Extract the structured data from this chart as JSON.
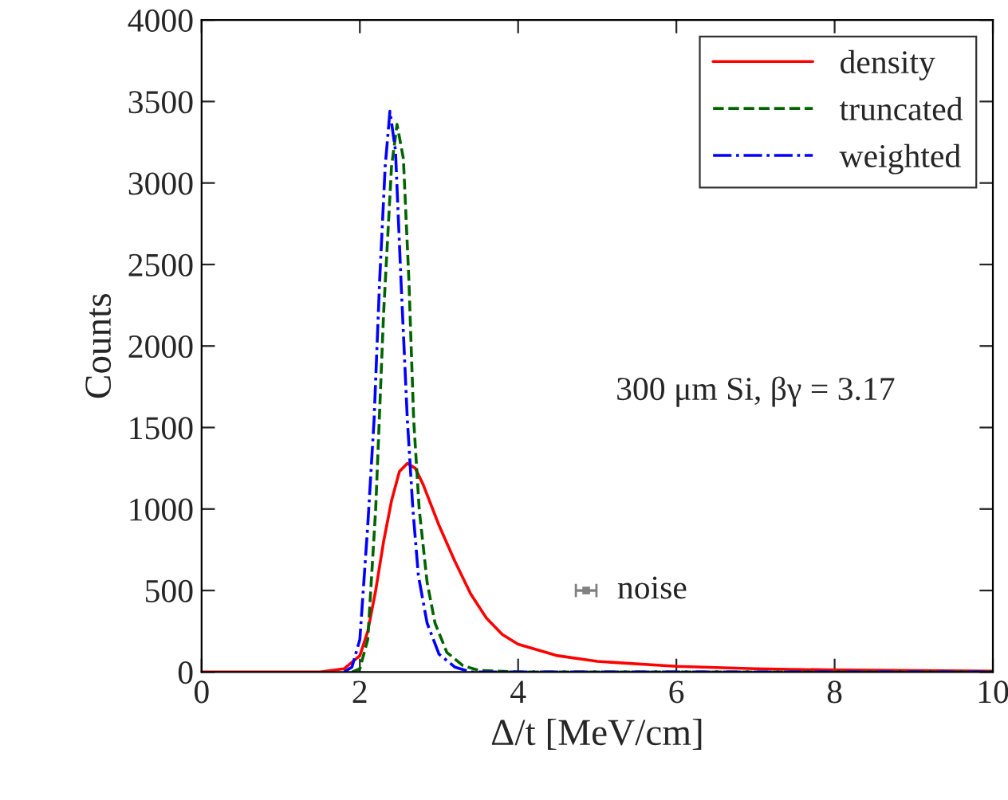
{
  "chart_data": {
    "type": "line",
    "xlabel": "Δ/t [MeV/cm]",
    "ylabel": "Counts",
    "xlim": [
      0,
      10
    ],
    "ylim": [
      0,
      4000
    ],
    "xticks": [
      0,
      2,
      4,
      6,
      8,
      10
    ],
    "yticks": [
      0,
      500,
      1000,
      1500,
      2000,
      2500,
      3000,
      3500,
      4000
    ],
    "grid": false,
    "legend": "top right",
    "marker": "none",
    "annotations": [
      "300 μm Si, βγ = 3.17"
    ],
    "series": [
      {
        "name": "density",
        "color": "#ff0000",
        "line_style": "solid",
        "x": [
          0,
          1.5,
          1.8,
          2.0,
          2.1,
          2.2,
          2.3,
          2.4,
          2.5,
          2.6,
          2.7,
          2.8,
          3.0,
          3.2,
          3.4,
          3.6,
          3.8,
          4.0,
          4.5,
          5.0,
          6.0,
          7.0,
          8.0,
          10.0
        ],
        "values": [
          0,
          0,
          20,
          100,
          250,
          500,
          800,
          1050,
          1230,
          1280,
          1250,
          1150,
          900,
          680,
          480,
          330,
          230,
          170,
          100,
          65,
          35,
          20,
          12,
          5
        ]
      },
      {
        "name": "truncated",
        "color": "#006400",
        "line_style": "dashed",
        "x": [
          1.9,
          2.0,
          2.1,
          2.2,
          2.3,
          2.4,
          2.47,
          2.55,
          2.62,
          2.68,
          2.75,
          2.85,
          2.95,
          3.1,
          3.3,
          3.5,
          4.0,
          10.0
        ],
        "values": [
          0,
          20,
          200,
          1000,
          2200,
          3100,
          3360,
          3150,
          2400,
          1550,
          1000,
          550,
          300,
          120,
          40,
          10,
          0,
          0
        ]
      },
      {
        "name": "weighted",
        "color": "#0000ff",
        "line_style": "dashdot",
        "x": [
          1.8,
          1.9,
          2.0,
          2.1,
          2.18,
          2.25,
          2.32,
          2.38,
          2.45,
          2.52,
          2.6,
          2.67,
          2.74,
          2.85,
          3.0,
          3.2,
          3.4,
          4.0,
          10.0
        ],
        "values": [
          0,
          30,
          200,
          900,
          1550,
          2400,
          3100,
          3440,
          3200,
          2400,
          1550,
          1000,
          590,
          300,
          110,
          30,
          0,
          0,
          0
        ]
      },
      {
        "name": "noise",
        "type": "scatter",
        "marker": "square",
        "color": "#808080",
        "x": [
          4.86
        ],
        "values": [
          500
        ],
        "xerrors": [
          0.13
        ]
      }
    ]
  }
}
